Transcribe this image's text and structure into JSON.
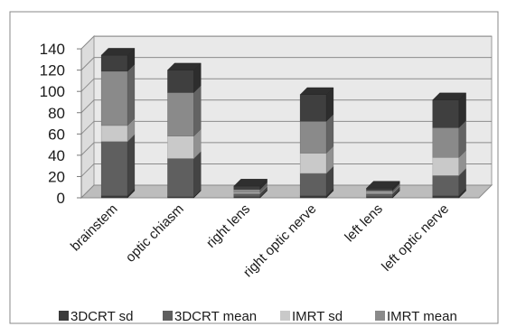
{
  "chart_data": {
    "type": "bar",
    "stacked": true,
    "three_d": true,
    "title": "",
    "xlabel": "",
    "ylabel": "",
    "ylim": [
      0,
      140
    ],
    "yticks": [
      0,
      20,
      40,
      60,
      80,
      100,
      120,
      140
    ],
    "categories": [
      "brainstem",
      "optic chiasm",
      "right lens",
      "right optic nerve",
      "left lens",
      "left optic nerve"
    ],
    "series": [
      {
        "name": "3DCRT sd",
        "color": "#3a3a3a",
        "values": [
          2,
          1,
          1,
          2,
          1,
          2
        ]
      },
      {
        "name": "3DCRT mean",
        "color": "#5f5f5f",
        "values": [
          51,
          36,
          3,
          21,
          3,
          19
        ]
      },
      {
        "name": "IMRT sd",
        "color": "#c9c9c9",
        "values": [
          15,
          21,
          1,
          19,
          1,
          17
        ]
      },
      {
        "name": "IMRT mean",
        "color": "#8a8a8a",
        "values": [
          51,
          41,
          3,
          30,
          2,
          28
        ]
      },
      {
        "name": "",
        "color": "#3f3f3f",
        "values": [
          15,
          21,
          3,
          25,
          2,
          26
        ]
      }
    ],
    "grid": true,
    "legend_position": "bottom"
  }
}
